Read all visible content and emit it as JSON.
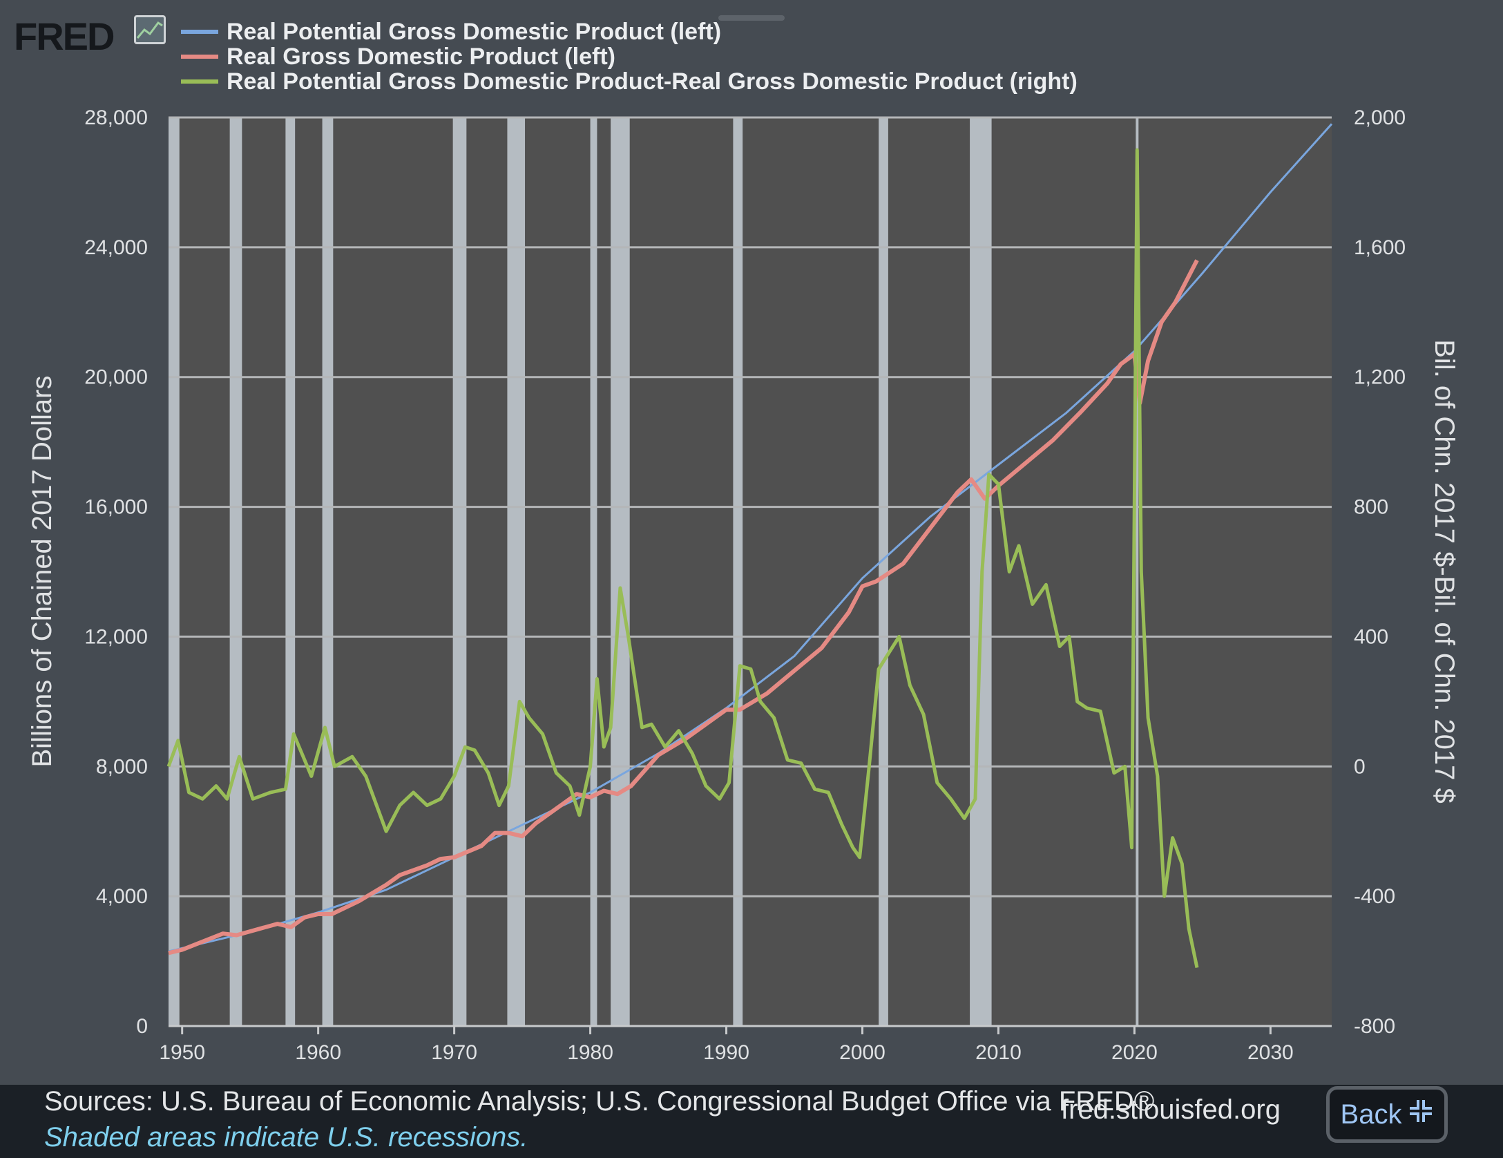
{
  "header": {
    "logo_text": "FRED"
  },
  "legend": [
    {
      "label": "Real Potential Gross Domestic Product (left)",
      "color": "#7aa6de"
    },
    {
      "label": "Real Gross Domestic Product (left)",
      "color": "#e58a84"
    },
    {
      "label": "Real Potential Gross Domestic Product-Real Gross Domestic Product (right)",
      "color": "#99bd57"
    }
  ],
  "footer": {
    "sources": "Sources: U.S. Bureau of Economic Analysis; U.S. Congressional Budget Office via FRED®",
    "note": "Shaded areas indicate U.S. recessions.",
    "site": "fred.stlouisfed.org",
    "back_label": "Back"
  },
  "chart_data": {
    "type": "line",
    "ylabel": "Billions of Chained 2017 Dollars",
    "y2label": "Bil. of Chn. 2017 $-Bil. of Chn. 2017 $",
    "xlim": [
      1949,
      2034.5
    ],
    "ylim": [
      0,
      28000
    ],
    "y2lim": [
      -800,
      2000
    ],
    "x_ticks": [
      "1950",
      "1960",
      "1970",
      "1980",
      "1990",
      "2000",
      "2010",
      "2020",
      "2030"
    ],
    "y_ticks": [
      "0",
      "4,000",
      "8,000",
      "12,000",
      "16,000",
      "20,000",
      "24,000",
      "28,000"
    ],
    "y2_ticks": [
      "-800",
      "-400",
      "0",
      "400",
      "800",
      "1,200",
      "1,600",
      "2,000"
    ],
    "grid": true,
    "legend_position": "top",
    "recessions": [
      [
        1948.9,
        1949.8
      ],
      [
        1953.5,
        1954.4
      ],
      [
        1957.6,
        1958.3
      ],
      [
        1960.3,
        1961.1
      ],
      [
        1969.9,
        1970.9
      ],
      [
        1973.9,
        1975.2
      ],
      [
        1980.0,
        1980.5
      ],
      [
        1981.5,
        1982.9
      ],
      [
        1990.5,
        1991.2
      ],
      [
        2001.2,
        2001.9
      ],
      [
        2007.9,
        2009.5
      ],
      [
        2020.1,
        2020.3
      ]
    ],
    "series": [
      {
        "name": "Real Potential Gross Domestic Product (left)",
        "axis": "left",
        "x": [
          1949,
          1955,
          1960,
          1965,
          1970,
          1975,
          1980,
          1985,
          1990,
          1995,
          2000,
          2005,
          2010,
          2015,
          2020,
          2025,
          2030,
          2034.5
        ],
        "values": [
          2300,
          2900,
          3500,
          4200,
          5200,
          6200,
          7200,
          8400,
          9800,
          11400,
          13800,
          15700,
          17300,
          18900,
          20800,
          23200,
          25700,
          27800
        ]
      },
      {
        "name": "Real Gross Domestic Product (left)",
        "axis": "left",
        "x": [
          1949,
          1950,
          1953,
          1954,
          1957,
          1958,
          1959,
          1960,
          1961,
          1963,
          1965,
          1966,
          1968,
          1969,
          1970,
          1972,
          1973,
          1974,
          1975,
          1976,
          1978,
          1979,
          1980,
          1981,
          1982,
          1983,
          1985,
          1987,
          1989,
          1990,
          1991,
          1993,
          1995,
          1997,
          1999,
          2000,
          2001,
          2003,
          2005,
          2007,
          2008,
          2009,
          2010,
          2012,
          2014,
          2016,
          2018,
          2019,
          2020.0,
          2020.4,
          2021,
          2022,
          2023,
          2024.6
        ],
        "values": [
          2250,
          2350,
          2850,
          2800,
          3150,
          3050,
          3350,
          3450,
          3450,
          3850,
          4350,
          4650,
          4950,
          5150,
          5200,
          5550,
          5950,
          5950,
          5850,
          6250,
          6850,
          7150,
          7050,
          7250,
          7150,
          7400,
          8350,
          8850,
          9450,
          9750,
          9750,
          10250,
          10950,
          11650,
          12750,
          13550,
          13700,
          14250,
          15350,
          16450,
          16850,
          16250,
          16650,
          17350,
          18050,
          18900,
          19800,
          20400,
          20700,
          19200,
          20500,
          21700,
          22300,
          23600
        ]
      },
      {
        "name": "Real Potential Gross Domestic Product-Real Gross Domestic Product (right)",
        "axis": "right",
        "x": [
          1949,
          1949.7,
          1950.5,
          1951.5,
          1952.5,
          1953.3,
          1954.2,
          1955.2,
          1956.5,
          1957.6,
          1958.2,
          1959.5,
          1960.5,
          1961.2,
          1962.5,
          1963.5,
          1965.0,
          1966.0,
          1967.0,
          1968.0,
          1969.0,
          1970.0,
          1970.8,
          1971.5,
          1972.5,
          1973.3,
          1974.0,
          1974.8,
          1975.5,
          1976.5,
          1977.5,
          1978.5,
          1979.2,
          1980.0,
          1980.5,
          1981.0,
          1981.5,
          1982.2,
          1982.8,
          1983.8,
          1984.5,
          1985.5,
          1986.5,
          1987.5,
          1988.5,
          1989.5,
          1990.2,
          1991.0,
          1991.8,
          1992.5,
          1993.5,
          1994.5,
          1995.5,
          1996.5,
          1997.5,
          1998.5,
          1999.3,
          1999.8,
          2000.5,
          2001.2,
          2001.8,
          2002.7,
          2003.5,
          2004.5,
          2005.5,
          2006.5,
          2007.5,
          2008.3,
          2008.8,
          2009.3,
          2010.0,
          2010.8,
          2011.5,
          2012.5,
          2013.5,
          2014.5,
          2015.2,
          2015.8,
          2016.5,
          2017.5,
          2018.5,
          2019.3,
          2019.8,
          2020.2,
          2020.5,
          2021.0,
          2021.7,
          2022.2,
          2022.8,
          2023.5,
          2024.0,
          2024.6
        ],
        "values": [
          0,
          80,
          -80,
          -100,
          -60,
          -100,
          30,
          -100,
          -80,
          -70,
          100,
          -30,
          120,
          0,
          30,
          -30,
          -200,
          -120,
          -80,
          -120,
          -100,
          -30,
          60,
          50,
          -20,
          -120,
          -60,
          200,
          150,
          100,
          -20,
          -60,
          -150,
          0,
          270,
          60,
          120,
          550,
          400,
          120,
          130,
          60,
          110,
          40,
          -60,
          -100,
          -50,
          310,
          300,
          200,
          150,
          20,
          10,
          -70,
          -80,
          -180,
          -250,
          -280,
          0,
          300,
          340,
          400,
          250,
          160,
          -50,
          -100,
          -160,
          -100,
          600,
          900,
          870,
          600,
          680,
          500,
          560,
          370,
          400,
          200,
          180,
          170,
          -20,
          0,
          -250,
          1900,
          600,
          150,
          -30,
          -400,
          -220,
          -300,
          -500,
          -620
        ]
      }
    ]
  }
}
